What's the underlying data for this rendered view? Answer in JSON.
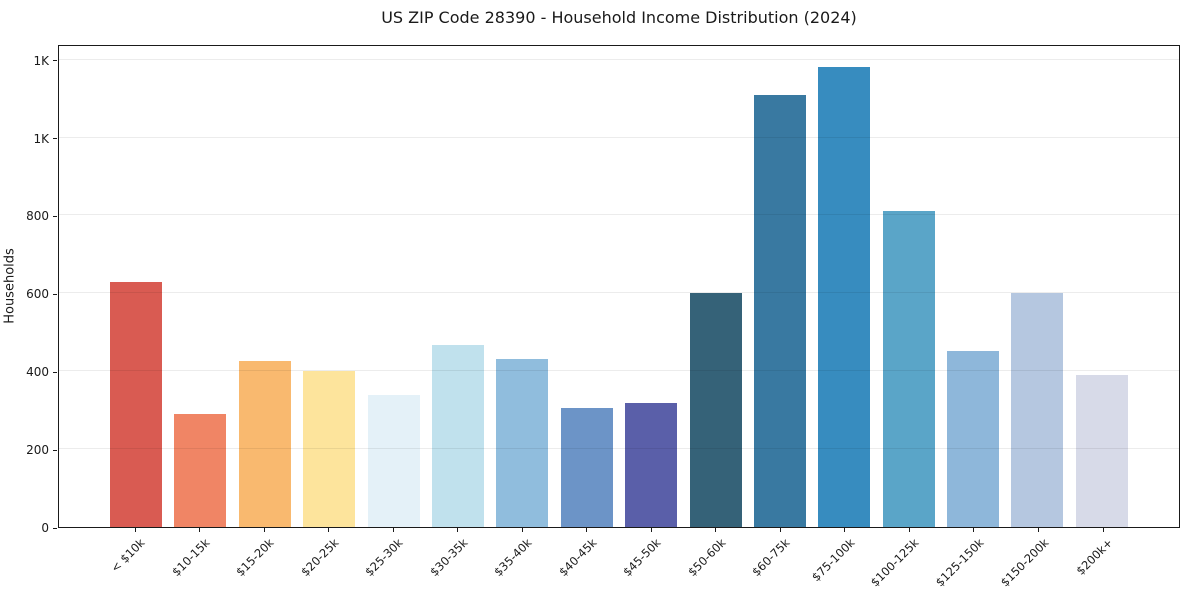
{
  "title": "US ZIP Code 28390 - Household Income Distribution (2024)",
  "chart_data": {
    "type": "bar",
    "title": "US ZIP Code 28390 - Household Income Distribution (2024)",
    "xlabel": "",
    "ylabel": "Households",
    "categories": [
      "< $10k",
      "$10-15k",
      "$15-20k",
      "$20-25k",
      "$25-30k",
      "$30-35k",
      "$35-40k",
      "$40-45k",
      "$45-50k",
      "$50-60k",
      "$60-75k",
      "$75-100k",
      "$100-125k",
      "$125-150k",
      "$150-200k",
      "$200k+"
    ],
    "values": [
      630,
      290,
      427,
      400,
      338,
      467,
      431,
      306,
      318,
      602,
      1110,
      1180,
      812,
      452,
      601,
      390
    ],
    "bar_colors": [
      "#d95b52",
      "#f08565",
      "#f9b96f",
      "#fde49c",
      "#e4f1f8",
      "#c0e1ed",
      "#90bddd",
      "#6c94c7",
      "#5a5fa9",
      "#356278",
      "#3979a1",
      "#378cbf",
      "#5aa5c8",
      "#8eb7da",
      "#b5c7e0",
      "#d7dae8"
    ],
    "ylim": [
      0,
      1240
    ],
    "yticks": [
      {
        "value": 0,
        "label": "0"
      },
      {
        "value": 200,
        "label": "200"
      },
      {
        "value": 400,
        "label": "400"
      },
      {
        "value": 600,
        "label": "600"
      },
      {
        "value": 800,
        "label": "800"
      },
      {
        "value": 1000,
        "label": "1K"
      },
      {
        "value": 1200,
        "label": "1K"
      }
    ],
    "grid": true,
    "grid_axis": "y",
    "legend_position": "none",
    "x_tick_rotation_deg": 45
  }
}
